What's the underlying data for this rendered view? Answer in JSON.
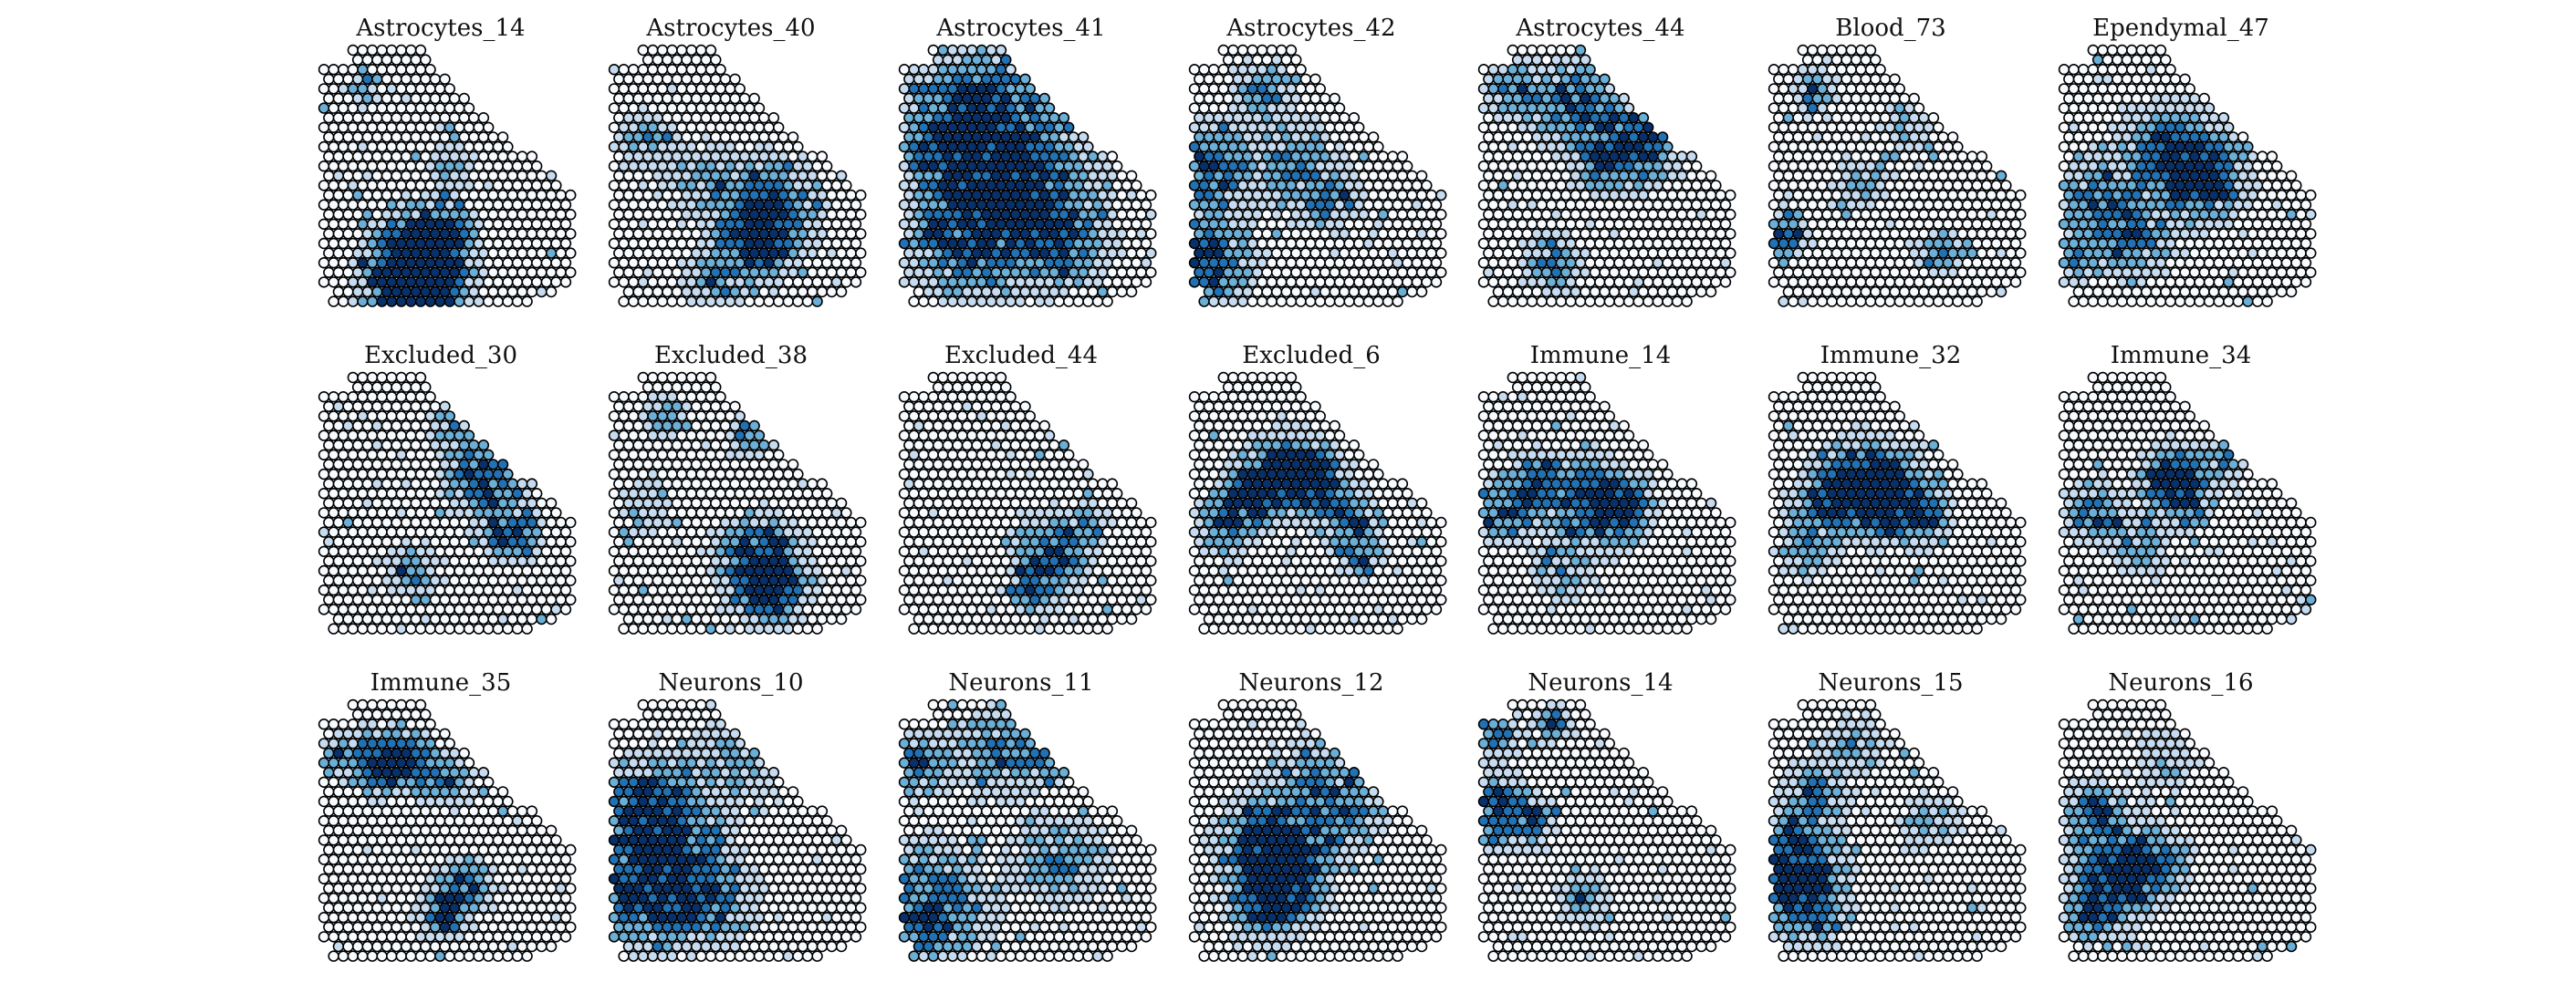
{
  "figure": {
    "description_type": "spatial spot intensity grid (small multiples)"
  },
  "chart_data": {
    "type": "heatmap",
    "colormap": [
      "#f7fbff",
      "#c6dbef",
      "#6baed6",
      "#2171b5",
      "#08306b"
    ],
    "spot_edge_color": "#000000",
    "panels": [
      {
        "title": "Astrocytes_14",
        "hotspots": [
          [
            9.5,
            21,
            3,
            1
          ],
          [
            10.5,
            24,
            2.5,
            0.9
          ],
          [
            8,
            25,
            3,
            0.8
          ],
          [
            12,
            19,
            2,
            0.6
          ],
          [
            4,
            4,
            1.2,
            0.6
          ],
          [
            13,
            12,
            1.5,
            0.5
          ]
        ]
      },
      {
        "title": "Astrocytes_40",
        "hotspots": [
          [
            15,
            17,
            3.5,
            1
          ],
          [
            15,
            20,
            2,
            0.8
          ],
          [
            3,
            9,
            2,
            0.5
          ],
          [
            8,
            13,
            2,
            0.4
          ],
          [
            10,
            24,
            2,
            0.5
          ]
        ]
      },
      {
        "title": "Astrocytes_41",
        "hotspots": [
          [
            5,
            10,
            4,
            0.8
          ],
          [
            12,
            14,
            5,
            0.8
          ],
          [
            6,
            20,
            4,
            0.7
          ],
          [
            16,
            20,
            3,
            0.6
          ],
          [
            9,
            5,
            4,
            0.6
          ]
        ]
      },
      {
        "title": "Astrocytes_42",
        "hotspots": [
          [
            1,
            22,
            3,
            1
          ],
          [
            1,
            12,
            3,
            0.8
          ],
          [
            10,
            12,
            3,
            0.6
          ],
          [
            14,
            16,
            2,
            0.5
          ],
          [
            7,
            4,
            2,
            0.6
          ]
        ]
      },
      {
        "title": "Astrocytes_44",
        "hotspots": [
          [
            10,
            6,
            3,
            0.9
          ],
          [
            16,
            10,
            2.5,
            0.9
          ],
          [
            12,
            12,
            2,
            0.6
          ],
          [
            7,
            22,
            2,
            0.6
          ],
          [
            3,
            4,
            2,
            0.7
          ]
        ]
      },
      {
        "title": "Blood_73",
        "hotspots": [
          [
            1,
            19,
            1.5,
            0.9
          ],
          [
            17,
            21,
            1.5,
            0.8
          ],
          [
            4,
            4,
            1.5,
            0.6
          ],
          [
            13,
            8,
            1.5,
            0.5
          ],
          [
            9,
            14,
            2,
            0.4
          ]
        ]
      },
      {
        "title": "Ependymal_47",
        "hotspots": [
          [
            14,
            13,
            3,
            1
          ],
          [
            10,
            10,
            3,
            0.7
          ],
          [
            3,
            16,
            3,
            0.7
          ],
          [
            7,
            20,
            2.5,
            0.6
          ],
          [
            1,
            22,
            1.5,
            0.6
          ]
        ]
      },
      {
        "title": "Excluded_30",
        "hotspots": [
          [
            16,
            10,
            2.5,
            0.9
          ],
          [
            19,
            16,
            2,
            0.9
          ],
          [
            13,
            5,
            1.5,
            0.5
          ],
          [
            9,
            20,
            2,
            0.5
          ]
        ]
      },
      {
        "title": "Excluded_38",
        "hotspots": [
          [
            15,
            19,
            3,
            1
          ],
          [
            16,
            22,
            2,
            0.9
          ],
          [
            5,
            4,
            1.5,
            0.6
          ],
          [
            14,
            6,
            1.5,
            0.6
          ],
          [
            3,
            13,
            2,
            0.4
          ]
        ]
      },
      {
        "title": "Excluded_44",
        "hotspots": [
          [
            15,
            18,
            2.5,
            0.9
          ],
          [
            13,
            22,
            1.5,
            0.8
          ],
          [
            17,
            6,
            1.2,
            0.5
          ],
          [
            19,
            15,
            1.2,
            0.5
          ]
        ]
      },
      {
        "title": "Excluded_6",
        "hotspots": [
          [
            9,
            10,
            2.5,
            1
          ],
          [
            12,
            10,
            2,
            0.9
          ],
          [
            6,
            12,
            2,
            0.8
          ],
          [
            3,
            15,
            2,
            0.8
          ],
          [
            15,
            14,
            2,
            0.7
          ],
          [
            17,
            18,
            2,
            0.5
          ]
        ]
      },
      {
        "title": "Immune_14",
        "hotspots": [
          [
            11,
            13,
            3,
            0.9
          ],
          [
            14,
            14,
            2,
            0.8
          ],
          [
            5,
            11,
            2,
            0.7
          ],
          [
            2,
            14,
            2,
            0.7
          ],
          [
            8,
            20,
            2,
            0.5
          ]
        ]
      },
      {
        "title": "Immune_32",
        "hotspots": [
          [
            9,
            11,
            3,
            1
          ],
          [
            12,
            13,
            2.5,
            0.9
          ],
          [
            5,
            13,
            2,
            0.7
          ],
          [
            15,
            14,
            2,
            0.6
          ],
          [
            3,
            18,
            2,
            0.5
          ]
        ]
      },
      {
        "title": "Immune_34",
        "hotspots": [
          [
            11,
            10,
            2,
            0.9
          ],
          [
            12,
            12,
            2,
            0.8
          ],
          [
            3,
            14,
            2,
            0.7
          ],
          [
            17,
            8,
            1.5,
            0.7
          ],
          [
            8,
            18,
            2,
            0.5
          ]
        ]
      },
      {
        "title": "Immune_35",
        "hotspots": [
          [
            5,
            6,
            2,
            1
          ],
          [
            9,
            6,
            2,
            0.9
          ],
          [
            13,
            8,
            1.5,
            0.6
          ],
          [
            14,
            19,
            2,
            0.8
          ],
          [
            12,
            22,
            1.5,
            0.9
          ],
          [
            1,
            5,
            1.2,
            0.6
          ]
        ]
      },
      {
        "title": "Neurons_10",
        "hotspots": [
          [
            3,
            19,
            4,
            1
          ],
          [
            3,
            10,
            3,
            0.8
          ],
          [
            6,
            14,
            3,
            0.6
          ],
          [
            10,
            20,
            3,
            0.6
          ],
          [
            12,
            6,
            3,
            0.5
          ]
        ]
      },
      {
        "title": "Neurons_11",
        "hotspots": [
          [
            2,
            21,
            4,
            0.9
          ],
          [
            1,
            6,
            2,
            0.8
          ],
          [
            9,
            5,
            3,
            0.6
          ],
          [
            16,
            16,
            3,
            0.6
          ],
          [
            15,
            5,
            2,
            0.5
          ]
        ]
      },
      {
        "title": "Neurons_12",
        "hotspots": [
          [
            7,
            14,
            3,
            1
          ],
          [
            9,
            18,
            3,
            1
          ],
          [
            7,
            21,
            2,
            0.8
          ],
          [
            15,
            11,
            3,
            0.5
          ],
          [
            12,
            7,
            3,
            0.4
          ]
        ]
      },
      {
        "title": "Neurons_14",
        "hotspots": [
          [
            1,
            11,
            2.5,
            0.9
          ],
          [
            1,
            3,
            1.5,
            0.8
          ],
          [
            7,
            2,
            1.2,
            0.8
          ],
          [
            5,
            12,
            1.5,
            0.6
          ],
          [
            10,
            20,
            2,
            0.5
          ]
        ]
      },
      {
        "title": "Neurons_15",
        "hotspots": [
          [
            2,
            16,
            3,
            1
          ],
          [
            3,
            21,
            2.5,
            0.9
          ],
          [
            4,
            9,
            2,
            0.7
          ],
          [
            8,
            4,
            2,
            0.5
          ],
          [
            16,
            12,
            2,
            0.5
          ]
        ]
      },
      {
        "title": "Neurons_16",
        "hotspots": [
          [
            5,
            18,
            3,
            1
          ],
          [
            3,
            11,
            2,
            0.9
          ],
          [
            9,
            16,
            2.5,
            0.6
          ],
          [
            10,
            6,
            2,
            0.4
          ],
          [
            2,
            22,
            1.5,
            0.7
          ]
        ]
      }
    ]
  }
}
